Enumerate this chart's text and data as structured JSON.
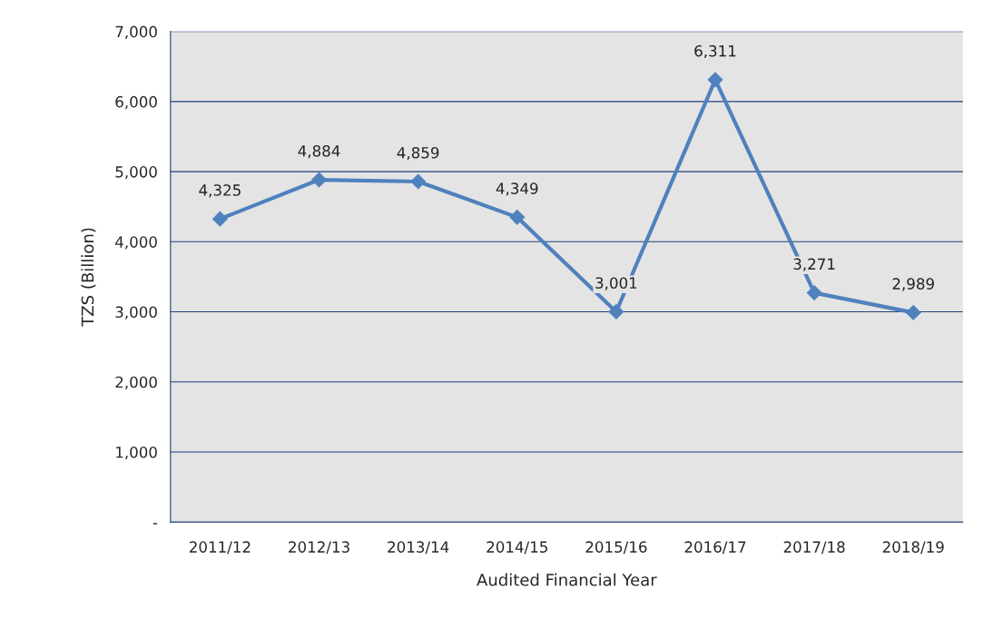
{
  "chart_data": {
    "type": "line",
    "xlabel": "Audited Financial Year",
    "ylabel": "TZS (Billion)",
    "categories": [
      "2011/12",
      "2012/13",
      "2013/14",
      "2014/15",
      "2015/16",
      "2016/17",
      "2017/18",
      "2018/19"
    ],
    "series": [
      {
        "color": "#4f81bd",
        "values": [
          4325,
          4884,
          4859,
          4349,
          3001,
          6311,
          3271,
          2989
        ],
        "value_labels": [
          "4,325",
          "4,884",
          "4,859",
          "4,349",
          "3,001",
          "6,311",
          "3,271",
          "2,989"
        ]
      }
    ],
    "ylim": [
      0,
      7000
    ],
    "yticks": [
      {
        "value": 0,
        "label": "-"
      },
      {
        "value": 1000,
        "label": "1,000"
      },
      {
        "value": 2000,
        "label": "2,000"
      },
      {
        "value": 3000,
        "label": "3,000"
      },
      {
        "value": 4000,
        "label": "4,000"
      },
      {
        "value": 5000,
        "label": "5,000"
      },
      {
        "value": 6000,
        "label": "6,000"
      },
      {
        "value": 7000,
        "label": "7,000"
      }
    ],
    "grid": "y",
    "marker": "diamond",
    "line_style": "solid"
  }
}
